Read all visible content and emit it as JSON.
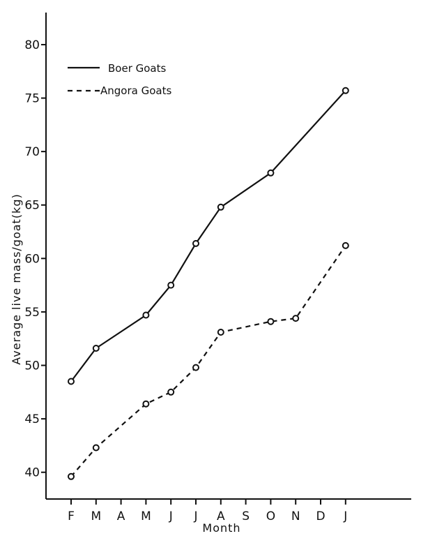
{
  "chart_data": {
    "type": "line",
    "title": "",
    "xlabel": "Month",
    "ylabel": "Average live mass/goat(kg)",
    "categories": [
      "F",
      "M",
      "A",
      "M",
      "J",
      "J",
      "A",
      "S",
      "O",
      "N",
      "D",
      "J"
    ],
    "y_ticks": [
      "40",
      "45",
      "50",
      "55",
      "60",
      "65",
      "70",
      "75",
      "80"
    ],
    "ylim": [
      37.5,
      83
    ],
    "grid": false,
    "legend_position": "top-left",
    "series": [
      {
        "name": "Boer Goats",
        "style": "solid",
        "points": [
          {
            "x": "F",
            "y": 48.5
          },
          {
            "x": "M",
            "y": 51.6
          },
          {
            "x": "M",
            "y": 54.7
          },
          {
            "x": "J",
            "y": 57.5
          },
          {
            "x": "J",
            "y": 61.4
          },
          {
            "x": "A",
            "y": 64.8
          },
          {
            "x": "O",
            "y": 68.0
          },
          {
            "x": "J",
            "y": 75.7
          }
        ]
      },
      {
        "name": "Angora Goats",
        "style": "dashed",
        "points": [
          {
            "x": "F",
            "y": 39.6
          },
          {
            "x": "M",
            "y": 42.3
          },
          {
            "x": "M",
            "y": 46.4
          },
          {
            "x": "J",
            "y": 47.5
          },
          {
            "x": "J",
            "y": 49.8
          },
          {
            "x": "A",
            "y": 53.1
          },
          {
            "x": "O",
            "y": 54.1
          },
          {
            "x": "N",
            "y": 54.4
          },
          {
            "x": "J",
            "y": 61.2
          }
        ]
      }
    ]
  }
}
